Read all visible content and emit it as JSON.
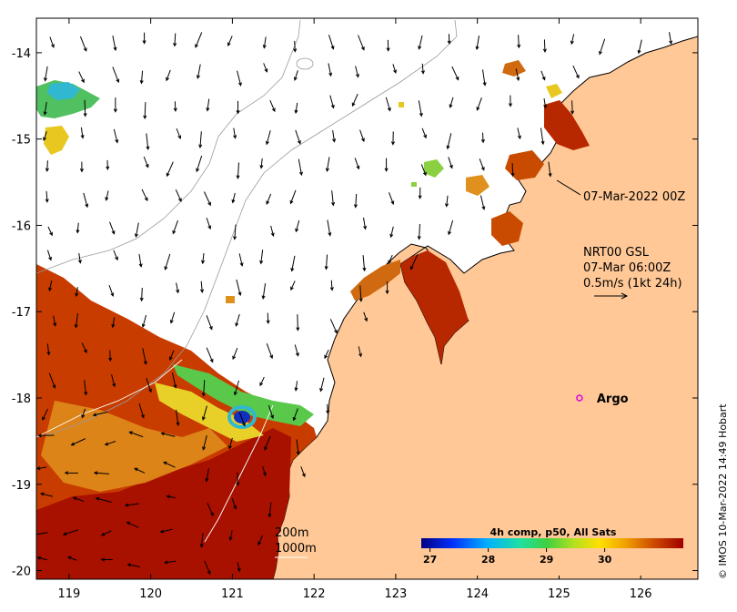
{
  "colors": {
    "land": "#ffc896",
    "ocean": "#ffffff",
    "sst_hot": "#b01a00",
    "sst_warm": "#c84b00",
    "sst_orange": "#e08a1a",
    "sst_yellow": "#f0c820",
    "sst_green": "#5ac84a",
    "sst_cyan": "#30b8d0",
    "sst_blue": "#1030c0",
    "argo": "#e000e0",
    "frame": "#000000"
  },
  "map": {
    "lon_range": [
      118.6,
      126.7
    ],
    "lat_range": [
      -20.1,
      -13.6
    ],
    "x_ticks": [
      {
        "value": 119,
        "label": "119"
      },
      {
        "value": 120,
        "label": "120"
      },
      {
        "value": 121,
        "label": "121"
      },
      {
        "value": 122,
        "label": "122"
      },
      {
        "value": 123,
        "label": "123"
      },
      {
        "value": 124,
        "label": "124"
      },
      {
        "value": 125,
        "label": "125"
      },
      {
        "value": 126,
        "label": "126"
      }
    ],
    "y_ticks": [
      {
        "value": -14,
        "label": "-14"
      },
      {
        "value": -15,
        "label": "-15"
      },
      {
        "value": -16,
        "label": "-16"
      },
      {
        "value": -17,
        "label": "-17"
      },
      {
        "value": -18,
        "label": "-18"
      },
      {
        "value": -19,
        "label": "-19"
      },
      {
        "value": -20,
        "label": "-20"
      }
    ]
  },
  "annotations": {
    "time_label": "07-Mar-2022 00Z",
    "current_product": "NRT00 GSL",
    "current_time": "07-Mar 06:00Z",
    "current_scale": "0.5m/s (1kt 24h)",
    "contour_200": "200m",
    "contour_1000": "1000m",
    "argo": "Argo",
    "argo_lon": 125.25,
    "argo_lat": -18.0,
    "credit": "© IMOS 10-Mar-2022 14:49 Hobart"
  },
  "colorbar": {
    "title": "4h comp, p50, All Sats",
    "min": 26.85,
    "max": 31.35,
    "ticks": [
      {
        "value": 27,
        "label": "27"
      },
      {
        "value": 28,
        "label": "28"
      },
      {
        "value": 29,
        "label": "29"
      },
      {
        "value": 30,
        "label": "30"
      }
    ]
  }
}
